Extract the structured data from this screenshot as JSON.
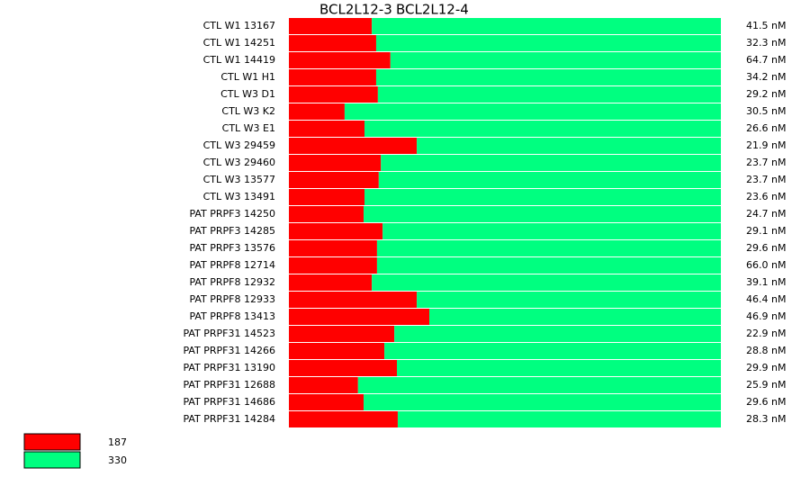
{
  "chart_data": {
    "type": "stacked_bar_h",
    "headers": [
      "BCL2L12-3",
      "BCL2L12-4"
    ],
    "categories": [
      "CTL W1 13167",
      "CTL W1 14251",
      "CTL W1 14419",
      "CTL W1 H1",
      "CTL W3 D1",
      "CTL W3 K2",
      "CTL W3 E1",
      "CTL W3 29459",
      "CTL W3 29460",
      "CTL W3 13577",
      "CTL W3 13491",
      "PAT PRPF3 14250",
      "PAT PRPF3 14285",
      "PAT PRPF3 13576",
      "PAT PRPF8 12714",
      "PAT PRPF8 12932",
      "PAT PRPF8 12933",
      "PAT PRPF8 13413",
      "PAT PRPF31 14523",
      "PAT PRPF31 14266",
      "PAT PRPF31 13190",
      "PAT PRPF31 12688",
      "PAT PRPF31 14686",
      "PAT PRPF31 14284"
    ],
    "row_notes": [
      "41.5 nM",
      "32.3 nM",
      "64.7 nM",
      "34.2 nM",
      "29.2 nM",
      "30.5 nM",
      "26.6 nM",
      "21.9 nM",
      "23.7 nM",
      "23.7 nM",
      "23.6 nM",
      "24.7 nM",
      "29.1 nM",
      "29.6 nM",
      "66.0 nM",
      "39.1 nM",
      "46.4 nM",
      "46.9 nM",
      "22.9 nM",
      "28.8 nM",
      "29.9 nM",
      "25.9 nM",
      "29.6 nM",
      "28.3 nM"
    ],
    "xlim": [
      0,
      100
    ],
    "series": [
      {
        "name": "187",
        "color": "#ff0000",
        "values": [
          19.2,
          20.2,
          23.5,
          20.2,
          20.6,
          12.9,
          17.5,
          29.6,
          21.3,
          20.8,
          17.5,
          17.3,
          21.7,
          20.4,
          20.4,
          19.2,
          29.6,
          32.5,
          24.4,
          22.1,
          25.0,
          16.0,
          17.3,
          25.2
        ]
      },
      {
        "name": "330",
        "color": "#00ff80",
        "values": [
          80.8,
          79.8,
          76.5,
          79.8,
          79.4,
          87.1,
          82.5,
          70.4,
          78.7,
          79.2,
          82.5,
          82.7,
          78.3,
          79.6,
          79.6,
          80.8,
          70.4,
          67.5,
          75.6,
          77.9,
          75.0,
          84.0,
          82.7,
          74.8
        ]
      }
    ]
  }
}
